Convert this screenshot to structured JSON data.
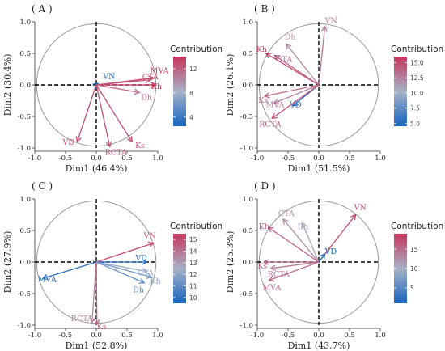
{
  "colorbar_title": "Contribution",
  "colors": {
    "low": "#1565c0",
    "mid": "#a8b2c8",
    "high": "#c8355c",
    "axis_lines": "#000000",
    "circle": "#9a9a9a"
  },
  "ticks_x": [
    "-1.0",
    "-0.5",
    "0.0",
    "0.5",
    "1.0"
  ],
  "ticks_y": [
    "-1.0",
    "-0.5",
    "0.0",
    "0.5",
    "1.0"
  ],
  "chart_data": [
    {
      "type": "scatter",
      "panel": "(A)",
      "xlabel": "Dim1 (46.4%)",
      "ylabel": "Dim2 (30.4%)",
      "xlim": [
        -1.0,
        1.0
      ],
      "ylim": [
        -1.0,
        1.0
      ],
      "colorbar": {
        "min": 2.5,
        "max": 14,
        "ticks": [
          4,
          8,
          12
        ]
      },
      "vectors": [
        {
          "name": "VN",
          "x": 0.03,
          "y": 0.02,
          "contrib": 2.5
        },
        {
          "name": "MVA",
          "x": 0.93,
          "y": 0.11,
          "contrib": 13.5
        },
        {
          "name": "CTA",
          "x": 0.88,
          "y": 0.08,
          "contrib": 12.5
        },
        {
          "name": "Kh",
          "x": 0.97,
          "y": 0.0,
          "contrib": 13.8
        },
        {
          "name": "Dh",
          "x": 0.7,
          "y": -0.12,
          "contrib": 11.5
        },
        {
          "name": "Ks",
          "x": 0.58,
          "y": -0.9,
          "contrib": 13.0
        },
        {
          "name": "RCTA",
          "x": 0.22,
          "y": -0.98,
          "contrib": 12.5
        },
        {
          "name": "VD",
          "x": -0.31,
          "y": -0.9,
          "contrib": 13.0
        }
      ]
    },
    {
      "type": "scatter",
      "panel": "(B)",
      "xlabel": "Dim1 (51.5%)",
      "ylabel": "Dim2 (26.1%)",
      "xlim": [
        -1.0,
        1.0
      ],
      "ylim": [
        -1.0,
        1.0
      ],
      "colorbar": {
        "min": 4.5,
        "max": 16,
        "ticks": [
          5.0,
          7.5,
          10.0,
          12.5,
          15.0
        ]
      },
      "vectors": [
        {
          "name": "VN",
          "x": 0.1,
          "y": 0.93,
          "contrib": 12.8
        },
        {
          "name": "Dh",
          "x": -0.53,
          "y": 0.65,
          "contrib": 12.0
        },
        {
          "name": "Kh",
          "x": -0.86,
          "y": 0.5,
          "contrib": 15.5
        },
        {
          "name": "CTA",
          "x": -0.72,
          "y": 0.47,
          "contrib": 13.8
        },
        {
          "name": "Ks",
          "x": -0.88,
          "y": -0.18,
          "contrib": 13.5
        },
        {
          "name": "MVA",
          "x": -0.73,
          "y": -0.29,
          "contrib": 12.5
        },
        {
          "name": "VD",
          "x": -0.42,
          "y": -0.33,
          "contrib": 4.8
        },
        {
          "name": "RCTA",
          "x": -0.76,
          "y": -0.53,
          "contrib": 14.5
        }
      ]
    },
    {
      "type": "scatter",
      "panel": "(C)",
      "xlabel": "Dim1 (52.8%)",
      "ylabel": "Dim2 (27.9%)",
      "xlim": [
        -1.0,
        1.0
      ],
      "ylim": [
        -1.0,
        1.0
      ],
      "colorbar": {
        "min": 9.5,
        "max": 15.5,
        "ticks": [
          10,
          11,
          12,
          13,
          14,
          15
        ]
      },
      "vectors": [
        {
          "name": "VN",
          "x": 0.93,
          "y": 0.3,
          "contrib": 15.0
        },
        {
          "name": "VD",
          "x": 0.82,
          "y": 0.0,
          "contrib": 9.8
        },
        {
          "name": "CTA",
          "x": 0.83,
          "y": -0.15,
          "contrib": 12.2
        },
        {
          "name": "Kh",
          "x": 0.9,
          "y": -0.24,
          "contrib": 11.5
        },
        {
          "name": "Dh",
          "x": 0.78,
          "y": -0.33,
          "contrib": 11.0
        },
        {
          "name": "MVA",
          "x": -0.87,
          "y": -0.26,
          "contrib": 10.0
        },
        {
          "name": "RCTA",
          "x": -0.07,
          "y": -0.96,
          "contrib": 13.5
        },
        {
          "name": "Ks",
          "x": 0.01,
          "y": -0.99,
          "contrib": 14.5
        }
      ]
    },
    {
      "type": "scatter",
      "panel": "(D)",
      "xlabel": "Dim1 (43.7%)",
      "ylabel": "Dim2 (25.3%)",
      "xlim": [
        -1.0,
        1.0
      ],
      "ylim": [
        -1.0,
        1.0
      ],
      "colorbar": {
        "min": 1,
        "max": 19,
        "ticks": [
          5,
          10,
          15
        ]
      },
      "vectors": [
        {
          "name": "VN",
          "x": 0.6,
          "y": 0.75,
          "contrib": 17.5
        },
        {
          "name": "CTA",
          "x": -0.58,
          "y": 0.68,
          "contrib": 12.5
        },
        {
          "name": "Dh",
          "x": -0.27,
          "y": 0.62,
          "contrib": 11.0
        },
        {
          "name": "Kh",
          "x": -0.82,
          "y": 0.55,
          "contrib": 16.0
        },
        {
          "name": "VD",
          "x": 0.1,
          "y": 0.13,
          "contrib": 1.5
        },
        {
          "name": "Ks",
          "x": -0.89,
          "y": 0.0,
          "contrib": 15.5
        },
        {
          "name": "RCTA",
          "x": -0.78,
          "y": -0.1,
          "contrib": 14.0
        },
        {
          "name": "MVA",
          "x": -0.81,
          "y": -0.29,
          "contrib": 15.0
        }
      ]
    }
  ]
}
